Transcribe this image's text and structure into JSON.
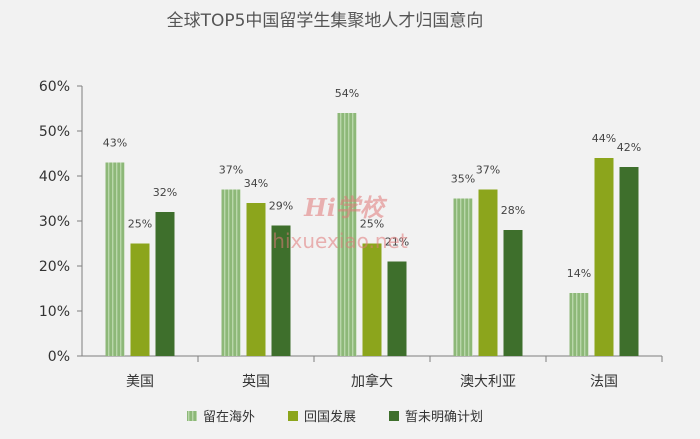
{
  "watermark": {
    "logo": "Hi学校",
    "text": "hixuexiao.net"
  },
  "chart_data": {
    "type": "bar",
    "title": "全球TOP5中国留学生集聚地人才归国意向",
    "categories": [
      "美国",
      "英国",
      "加拿大",
      "澳大利亚",
      "法国"
    ],
    "series": [
      {
        "name": "留在海外",
        "values": [
          43,
          37,
          54,
          35,
          14
        ],
        "color": "#8db878",
        "pattern": "vertical-stripes"
      },
      {
        "name": "回国发展",
        "values": [
          25,
          34,
          25,
          37,
          44
        ],
        "color": "#8ca51c"
      },
      {
        "name": "暂未明确计划",
        "values": [
          32,
          29,
          21,
          28,
          42
        ],
        "color": "#3e6f2c"
      }
    ],
    "ylim": [
      0,
      60
    ],
    "yticks": [
      0,
      10,
      20,
      30,
      40,
      50,
      60
    ],
    "yticklabels": [
      "0%",
      "10%",
      "20%",
      "30%",
      "40%",
      "50%",
      "60%"
    ],
    "data_labels": [
      [
        "43%",
        "37%",
        "54%",
        "35%",
        "14%"
      ],
      [
        "25%",
        "34%",
        "25%",
        "37%",
        "44%"
      ],
      [
        "32%",
        "29%",
        "21%",
        "28%",
        "42%"
      ]
    ],
    "xlabel": "",
    "ylabel": "",
    "legend": "bottom",
    "grid": false
  }
}
